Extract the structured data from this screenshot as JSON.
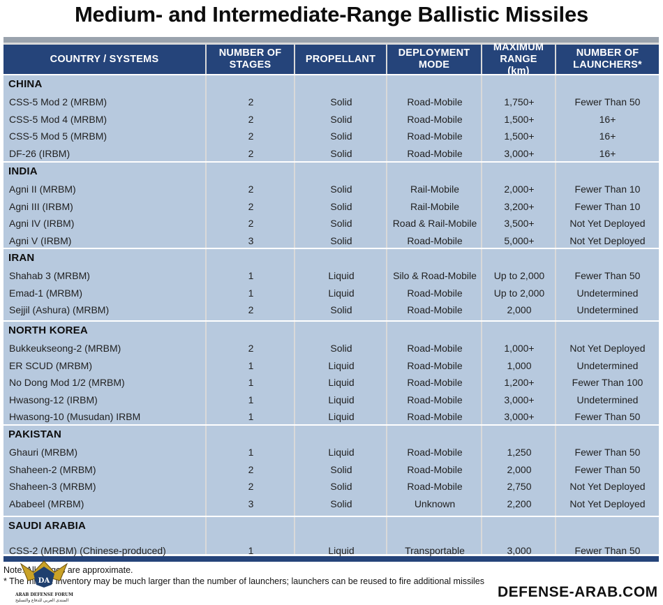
{
  "title": "Medium- and Intermediate-Range Ballistic Missiles",
  "headers": {
    "system": "COUNTRY / SYSTEMS",
    "stages": "NUMBER OF STAGES",
    "propellant": "PROPELLANT",
    "deployment": "DEPLOYMENT MODE",
    "range": "MAXIMUM RANGE (km)",
    "launchers": "NUMBER OF LAUNCHERS*"
  },
  "groups": [
    {
      "name": "CHINA",
      "rows": [
        {
          "system": "CSS-5 Mod 2 (MRBM)",
          "stages": "2",
          "propellant": "Solid",
          "deployment": "Road-Mobile",
          "range": "1,750+",
          "launchers": "Fewer Than 50"
        },
        {
          "system": "CSS-5 Mod 4 (MRBM)",
          "stages": "2",
          "propellant": "Solid",
          "deployment": "Road-Mobile",
          "range": "1,500+",
          "launchers": "16+"
        },
        {
          "system": "CSS-5 Mod 5 (MRBM)",
          "stages": "2",
          "propellant": "Solid",
          "deployment": "Road-Mobile",
          "range": "1,500+",
          "launchers": "16+"
        },
        {
          "system": "DF-26 (IRBM)",
          "stages": "2",
          "propellant": "Solid",
          "deployment": "Road-Mobile",
          "range": "3,000+",
          "launchers": "16+"
        }
      ]
    },
    {
      "name": "INDIA",
      "rows": [
        {
          "system": "Agni II (MRBM)",
          "stages": "2",
          "propellant": "Solid",
          "deployment": "Rail-Mobile",
          "range": "2,000+",
          "launchers": "Fewer Than 10"
        },
        {
          "system": "Agni III (IRBM)",
          "stages": "2",
          "propellant": "Solid",
          "deployment": "Rail-Mobile",
          "range": "3,200+",
          "launchers": "Fewer Than 10"
        },
        {
          "system": "Agni IV (IRBM)",
          "stages": "2",
          "propellant": "Solid",
          "deployment": "Road & Rail-Mobile",
          "range": "3,500+",
          "launchers": "Not Yet Deployed"
        },
        {
          "system": "Agni V (IRBM)",
          "stages": "3",
          "propellant": "Solid",
          "deployment": "Road-Mobile",
          "range": "5,000+",
          "launchers": "Not Yet Deployed"
        }
      ]
    },
    {
      "name": "IRAN",
      "rows": [
        {
          "system": "Shahab 3 (MRBM)",
          "stages": "1",
          "propellant": "Liquid",
          "deployment": "Silo & Road-Mobile",
          "range": "Up to 2,000",
          "launchers": "Fewer Than 50"
        },
        {
          "system": "Emad-1 (MRBM)",
          "stages": "1",
          "propellant": "Liquid",
          "deployment": "Road-Mobile",
          "range": "Up to 2,000",
          "launchers": "Undetermined"
        },
        {
          "system": "Sejjil (Ashura) (MRBM)",
          "stages": "2",
          "propellant": "Solid",
          "deployment": "Road-Mobile",
          "range": "2,000",
          "launchers": "Undetermined"
        }
      ]
    },
    {
      "name": "NORTH KOREA",
      "rows": [
        {
          "system": "Bukkeukseong-2 (MRBM)",
          "stages": "2",
          "propellant": "Solid",
          "deployment": "Road-Mobile",
          "range": "1,000+",
          "launchers": "Not Yet Deployed"
        },
        {
          "system": "ER SCUD (MRBM)",
          "stages": "1",
          "propellant": "Liquid",
          "deployment": "Road-Mobile",
          "range": "1,000",
          "launchers": "Undetermined"
        },
        {
          "system": "No Dong Mod 1/2 (MRBM)",
          "stages": "1",
          "propellant": "Liquid",
          "deployment": "Road-Mobile",
          "range": "1,200+",
          "launchers": "Fewer Than 100"
        },
        {
          "system": "Hwasong-12 (IRBM)",
          "stages": "1",
          "propellant": "Liquid",
          "deployment": "Road-Mobile",
          "range": "3,000+",
          "launchers": "Undetermined"
        },
        {
          "system": "Hwasong-10 (Musudan) IRBM",
          "stages": "1",
          "propellant": "Liquid",
          "deployment": "Road-Mobile",
          "range": "3,000+",
          "launchers": "Fewer Than 50"
        }
      ]
    },
    {
      "name": "PAKISTAN",
      "rows": [
        {
          "system": "Ghauri (MRBM)",
          "stages": "1",
          "propellant": "Liquid",
          "deployment": "Road-Mobile",
          "range": "1,250",
          "launchers": "Fewer Than 50"
        },
        {
          "system": "Shaheen-2 (MRBM)",
          "stages": "2",
          "propellant": "Solid",
          "deployment": "Road-Mobile",
          "range": "2,000",
          "launchers": "Fewer Than 50"
        },
        {
          "system": "Shaheen-3 (MRBM)",
          "stages": "2",
          "propellant": "Solid",
          "deployment": "Road-Mobile",
          "range": "2,750",
          "launchers": "Not Yet Deployed"
        },
        {
          "system": "Ababeel (MRBM)",
          "stages": "3",
          "propellant": "Solid",
          "deployment": "Unknown",
          "range": "2,200",
          "launchers": "Not Yet Deployed"
        }
      ]
    },
    {
      "name": "SAUDI ARABIA",
      "rows": [
        {
          "system": "CSS-2 (MRBM) (Chinese-produced)",
          "stages": "1",
          "propellant": "Liquid",
          "deployment": "Transportable",
          "range": "3,000",
          "launchers": "Fewer Than 50"
        }
      ]
    }
  ],
  "notes": {
    "note1": "Note: All ranges are approximate.",
    "note2": "* The missile inventory may be much larger than the number of launchers; launchers can be reused to fire additional missiles"
  },
  "watermark": {
    "brand": "DEFENSE-ARAB.COM",
    "logo_line1": "ARAB DEFENSE FORUM",
    "logo_line2": "المنتدى العربي للدفاع والتسليح",
    "logo_mark": "DA"
  }
}
